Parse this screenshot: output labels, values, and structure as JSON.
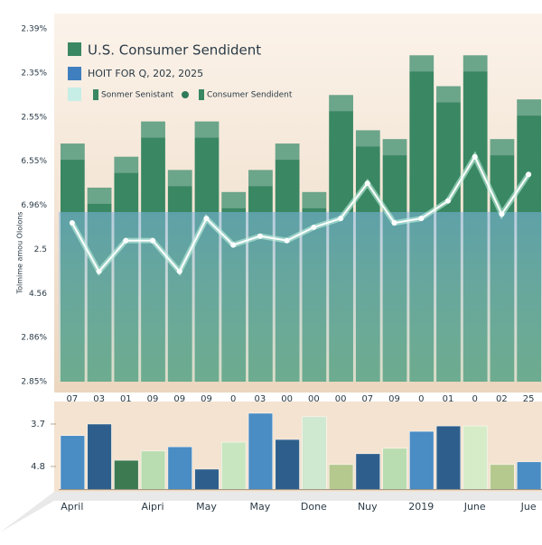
{
  "chart_data": [
    {
      "type": "bar",
      "title": "U.S. Consumer Sendident",
      "subtitle": "HOIT FOR Q, 202, 2025",
      "y_axis_title": "Tolmime amou Ololons",
      "y_axis_labels": [
        "2.39%",
        "2.35%",
        "2.55%",
        "6.55%",
        "6.96%",
        "2.5",
        "4.56",
        "2.86%",
        "2.85%"
      ],
      "categories": [
        "07",
        "03",
        "01",
        "09",
        "09",
        "09",
        "0",
        "03",
        "00",
        "00",
        "00",
        "07",
        "09",
        "0",
        "01",
        "0",
        "02",
        "25"
      ],
      "ylim": [
        0,
        8
      ],
      "series": [
        {
          "name": "Sonmer Senistant",
          "type": "bar",
          "color": "#3a8763",
          "values": [
            5.4,
            4.4,
            5.1,
            5.9,
            4.8,
            5.9,
            4.3,
            4.8,
            5.4,
            4.3,
            6.5,
            5.7,
            5.5,
            7.4,
            6.7,
            7.4,
            5.5,
            6.4
          ]
        },
        {
          "name": "Consumer Sendident",
          "type": "line",
          "color": "#ffffff",
          "values": [
            3.6,
            2.5,
            3.2,
            3.2,
            2.5,
            3.7,
            3.1,
            3.3,
            3.2,
            3.5,
            3.7,
            4.5,
            3.6,
            3.7,
            4.1,
            5.1,
            3.8,
            4.7
          ]
        }
      ]
    },
    {
      "type": "bar",
      "categories": [
        "April",
        null,
        null,
        "Aipri",
        null,
        "May",
        null,
        "May",
        null,
        "Done",
        null,
        "Nuy",
        null,
        "2019",
        null,
        "June",
        null,
        "Jue"
      ],
      "ylim": [
        5.4,
        3.35
      ],
      "yticks": [
        3.7,
        4.8
      ],
      "colors": [
        "#4a8cc4",
        "#2e5f8c",
        "#3d7a52",
        "#b9dcb0",
        "#4a8cc4",
        "#2e5f8c",
        "#c8e6c0",
        "#4a8cc4",
        "#2e5f8c",
        "#cfe8d0",
        "#b5c98f",
        "#2e5f8c",
        "#b9dcb0",
        "#4a8cc4",
        "#2e5f8c",
        "#d6ecc8",
        "#b5c98f",
        "#4a8cc4"
      ],
      "values": [
        4.0,
        3.7,
        4.64,
        4.4,
        4.29,
        4.87,
        4.17,
        3.42,
        4.1,
        3.51,
        4.75,
        4.47,
        4.33,
        3.89,
        3.75,
        3.75,
        4.75,
        4.68
      ]
    }
  ]
}
